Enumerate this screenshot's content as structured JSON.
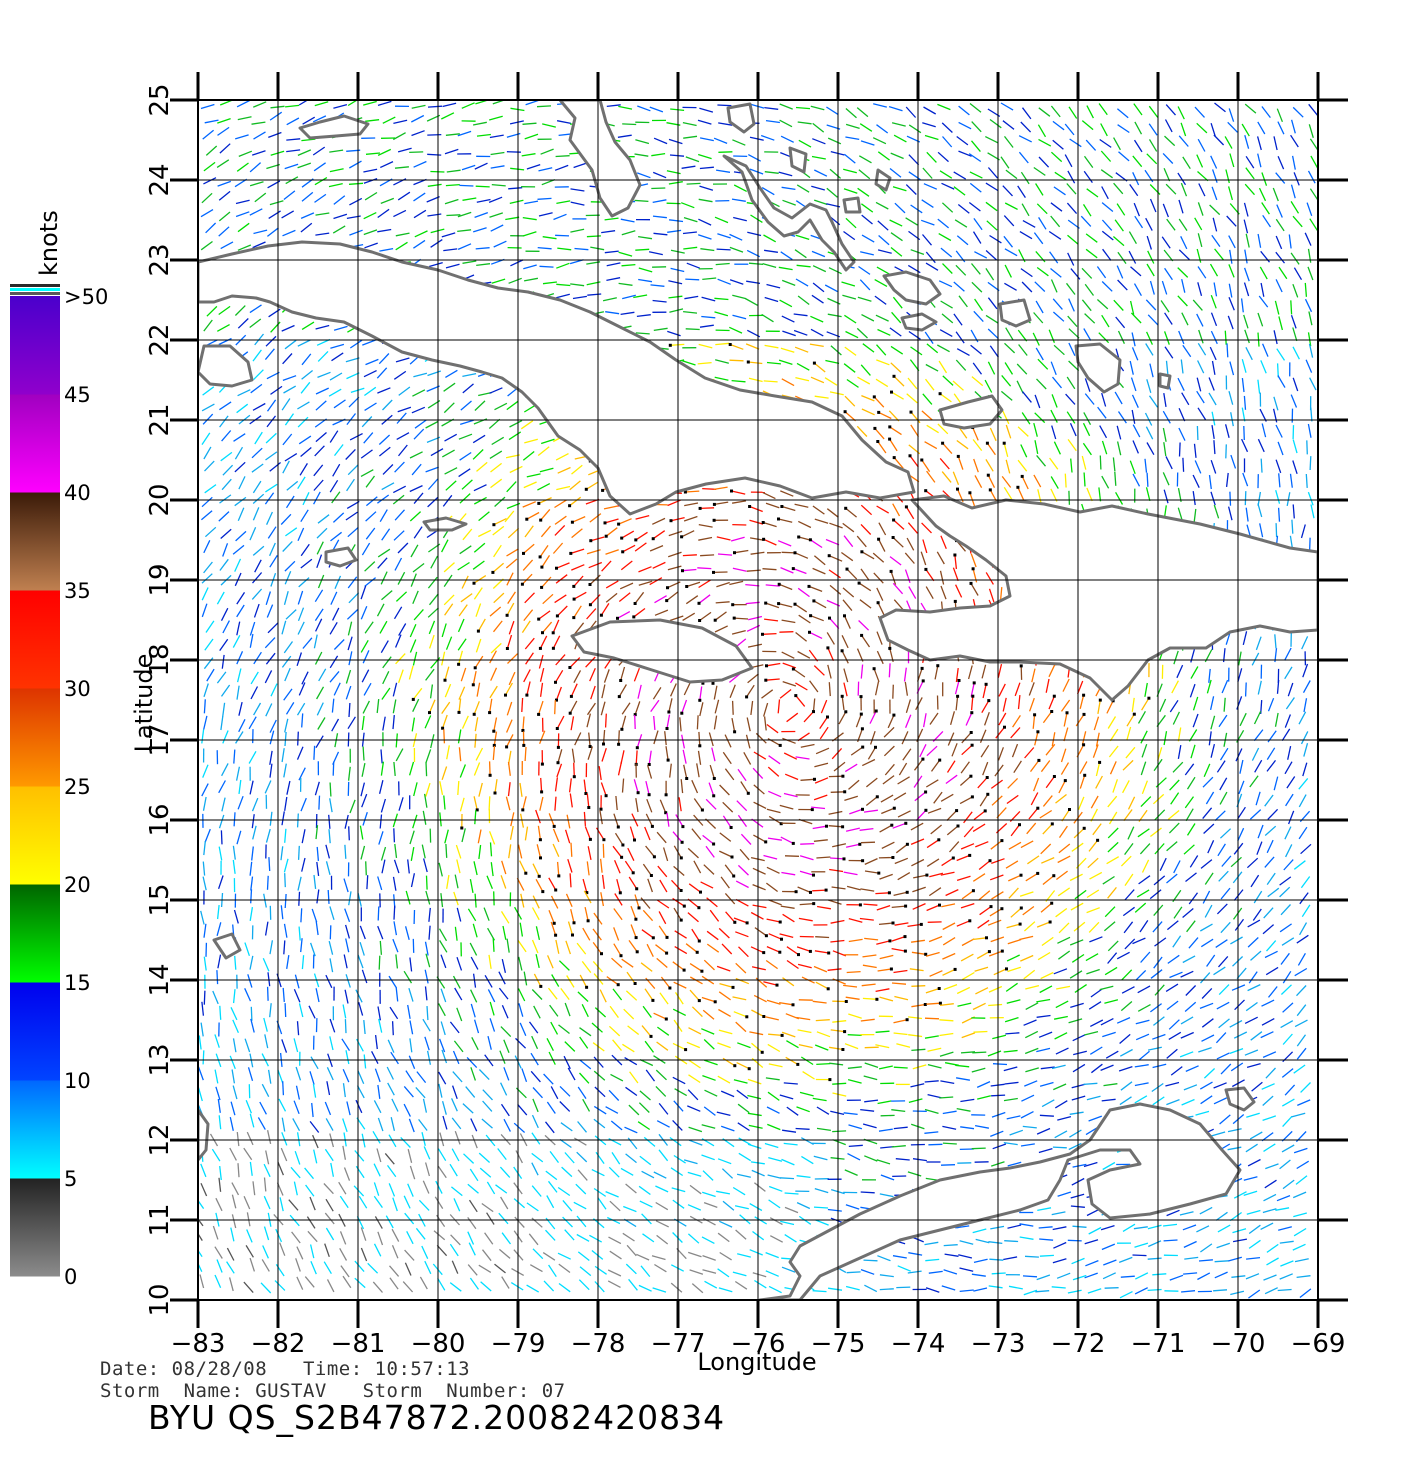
{
  "map": {
    "xlabel": "Longitude",
    "ylabel": "Latitude",
    "lon_ticks": [
      -83,
      -82,
      -81,
      -80,
      -79,
      -78,
      -77,
      -76,
      -75,
      -74,
      -73,
      -72,
      -71,
      -70,
      -69
    ],
    "lat_ticks": [
      10,
      11,
      12,
      13,
      14,
      15,
      16,
      17,
      18,
      19,
      20,
      21,
      22,
      23,
      24,
      25
    ],
    "lon_range": [
      -83,
      -69
    ],
    "lat_range": [
      10,
      25
    ],
    "grid": true,
    "land_color": "#ffffff",
    "coast_color": "#707070"
  },
  "colorbar": {
    "unit": "knots",
    "labels": [
      "0",
      "5",
      "10",
      "15",
      "20",
      "25",
      "30",
      "35",
      "40",
      "45",
      ">50"
    ],
    "stops": [
      {
        "from": 0,
        "to": 5,
        "top": "#222222",
        "bottom": "#8c8c8c"
      },
      {
        "from": 5,
        "to": 10,
        "top": "#0066ff",
        "bottom": "#00ffff"
      },
      {
        "from": 10,
        "to": 15,
        "top": "#0000ee",
        "bottom": "#0044ff"
      },
      {
        "from": 15,
        "to": 20,
        "top": "#006400",
        "bottom": "#00ff00"
      },
      {
        "from": 20,
        "to": 25,
        "top": "#ffbf00",
        "bottom": "#ffff00"
      },
      {
        "from": 25,
        "to": 30,
        "top": "#dd3300",
        "bottom": "#ff9900"
      },
      {
        "from": 30,
        "to": 35,
        "top": "#ff0000",
        "bottom": "#ff3300"
      },
      {
        "from": 35,
        "to": 40,
        "top": "#3a1a08",
        "bottom": "#c08050"
      },
      {
        "from": 40,
        "to": 45,
        "top": "#a000c0",
        "bottom": "#ff00ff"
      },
      {
        "from": 45,
        "to": 50,
        "top": "#4a00cc",
        "bottom": "#9000cc"
      }
    ],
    "cap_colors": [
      "#5a5a5a",
      "#00ffff",
      "#2a2a2a"
    ]
  },
  "meta": {
    "line1": "Date: 08/28/08   Time: 10:57:13",
    "line2": "Storm  Name: GUSTAV   Storm  Number: 07",
    "product": "BYU  QS_S2B47872.20082420834"
  }
}
